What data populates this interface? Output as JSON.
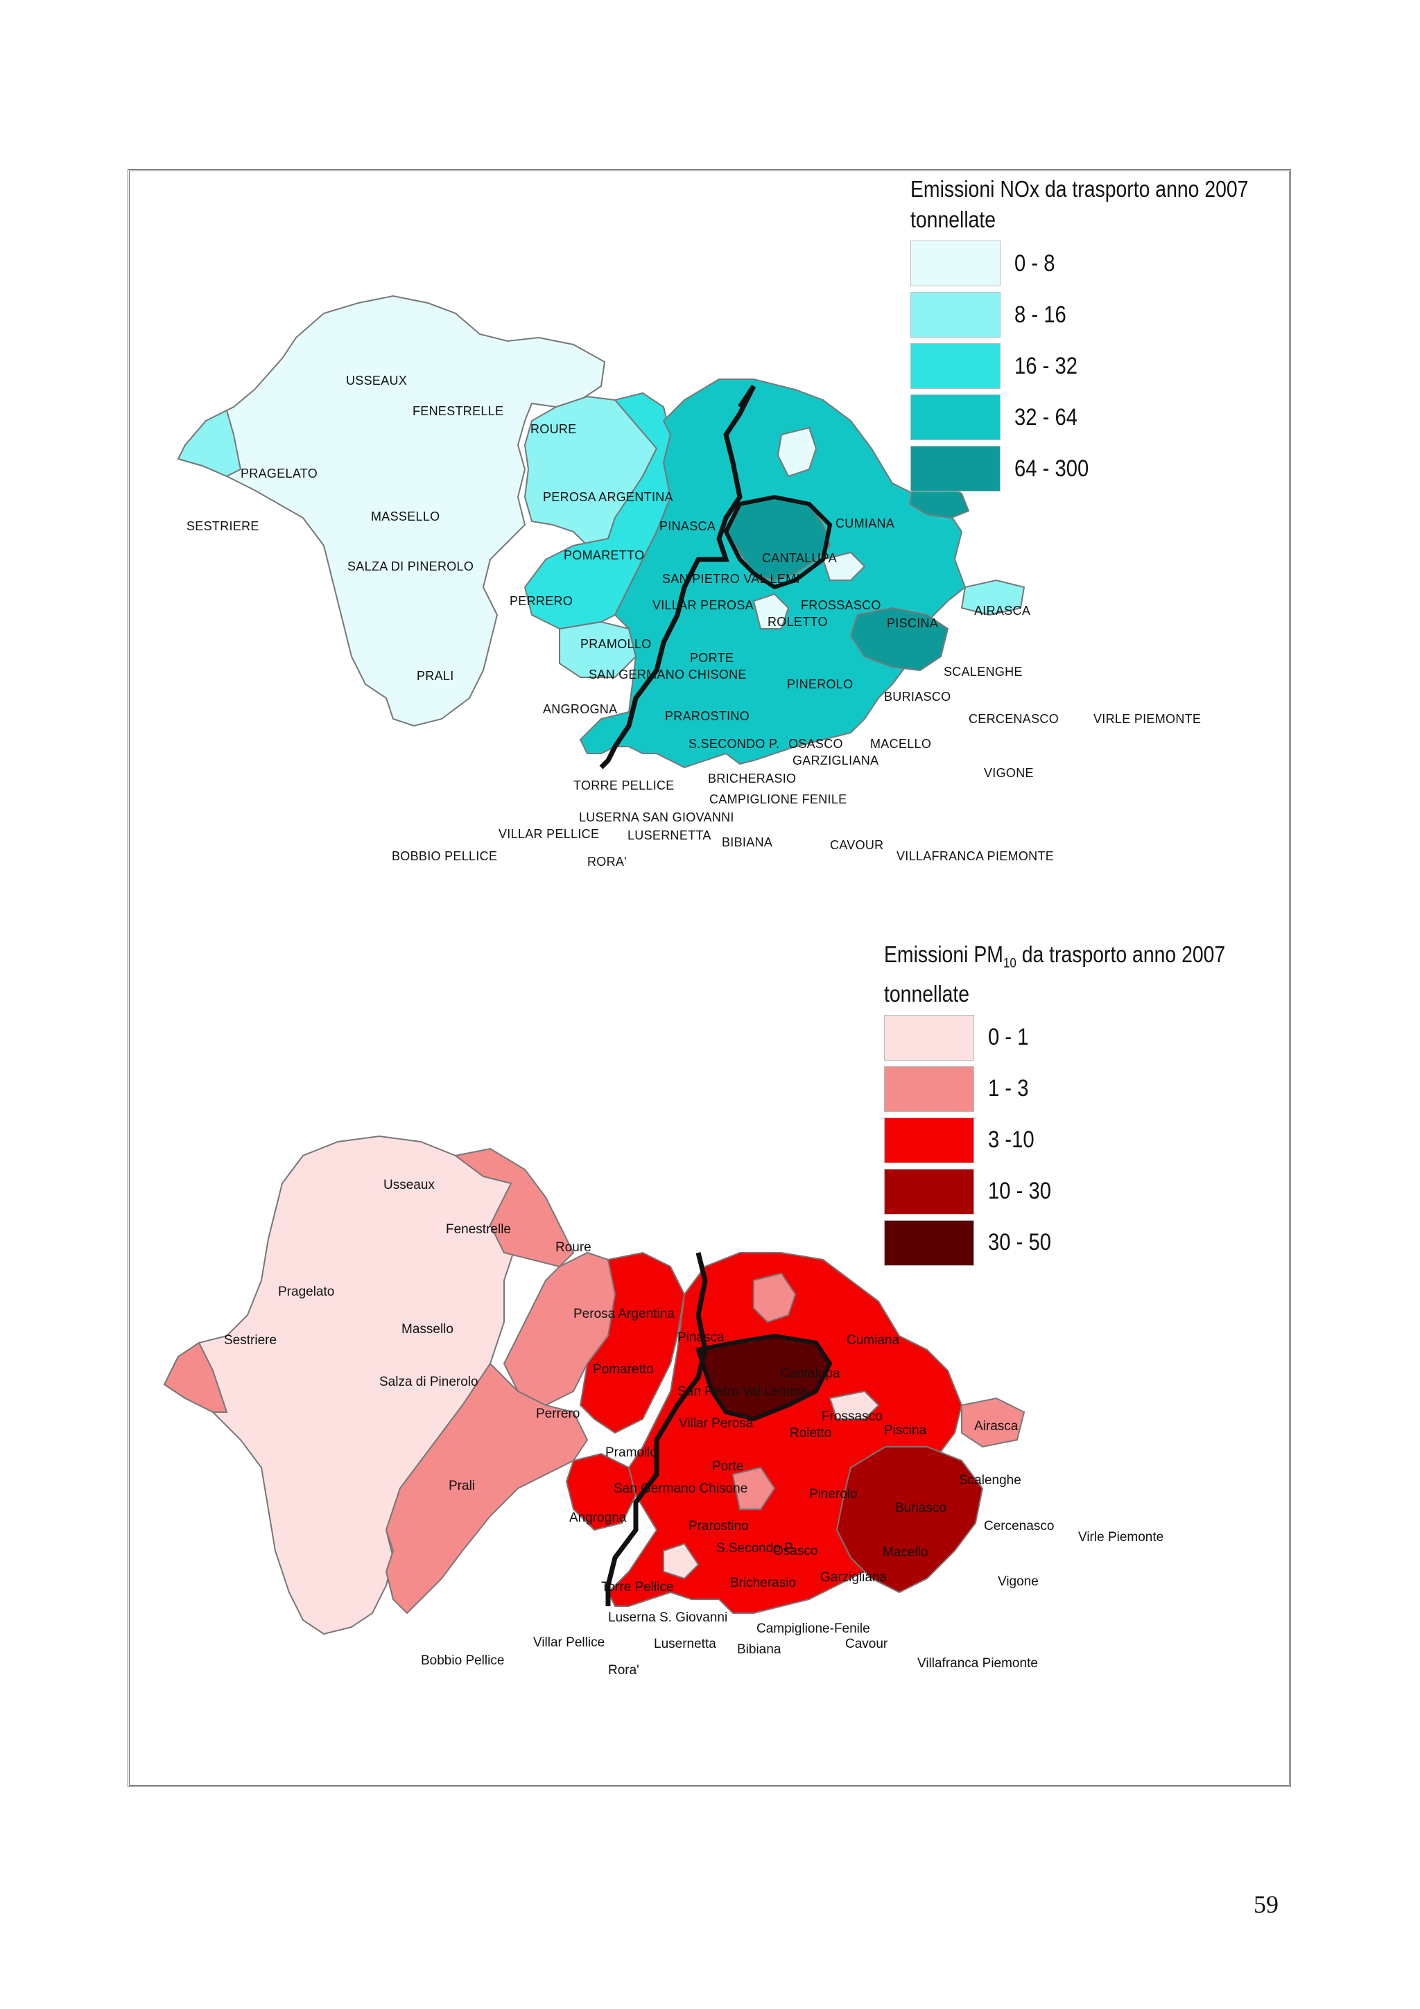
{
  "page_number": "59",
  "nox_map": {
    "legend_title_line1": "Emissioni NOx da trasporto anno 2007",
    "legend_title_line2": "tonnellate",
    "classes": [
      {
        "label": "0 - 8",
        "color": "#e6fbfb"
      },
      {
        "label": "8 - 16",
        "color": "#8df3f3"
      },
      {
        "label": "16 - 32",
        "color": "#2fe3e3"
      },
      {
        "label": "32 - 64",
        "color": "#13c6c6"
      },
      {
        "label": "64 - 300",
        "color": "#0f9a9a"
      }
    ],
    "places": [
      "USSEAUX",
      "FENESTRELLE",
      "ROURE",
      "PRAGELATO",
      "SESTRIERE",
      "MASSELLO",
      "SALZA DI PINEROLO",
      "PERRERO",
      "PRALI",
      "PEROSA ARGENTINA",
      "PINASCA",
      "POMARETTO",
      "SAN PIETRO VAL LEMI",
      "VILLAR PEROSA",
      "PRAMOLLO",
      "PORTE",
      "SAN GERMANO CHISONE",
      "ANGROGNA",
      "PRAROSTINO",
      "S.SECONDO P.",
      "OSASCO",
      "TORRE PELLICE",
      "BRICHERASIO",
      "LUSERNA SAN GIOVANNI",
      "VILLAR PELLICE",
      "LUSERNETTA",
      "BIBIANA",
      "BOBBIO PELLICE",
      "RORA'",
      "CUMIANA",
      "CANTALUPA",
      "FROSSASCO",
      "ROLETTO",
      "PISCINA",
      "AIRASCA",
      "PINEROLO",
      "SCALENGHE",
      "BURIASCO",
      "CERCENASCO",
      "VIRLE PIEMONTE",
      "MACELLO",
      "GARZIGLIANA",
      "VIGONE",
      "CAMPIGLIONE FENILE",
      "CAVOUR",
      "VILLAFRANCA PIEMONTE"
    ]
  },
  "pm_map": {
    "legend_title_prefix": "Emissioni PM",
    "legend_title_sub": "10",
    "legend_title_suffix": " da trasporto anno 2007",
    "legend_title_line2": "tonnellate",
    "classes": [
      {
        "label": "0 - 1",
        "color": "#fde0e0"
      },
      {
        "label": "1 - 3",
        "color": "#f58c8c"
      },
      {
        "label": "3 -10",
        "color": "#f40000"
      },
      {
        "label": "10 - 30",
        "color": "#a80000"
      },
      {
        "label": "30 - 50",
        "color": "#5a0000"
      }
    ],
    "places": [
      "Usseaux",
      "Fenestrelle",
      "Roure",
      "Pragelato",
      "Sestriere",
      "Massello",
      "Salza di Pinerolo",
      "Perrero",
      "Prali",
      "Perosa Argentina",
      "Pinasca",
      "Pomaretto",
      "San Pietro Val Lemina",
      "Villar Perosa",
      "Pramollo",
      "Porte",
      "San Germano Chisone",
      "Angrogna",
      "Prarostino",
      "S.Secondo P.",
      "Osasco",
      "Torre Pellice",
      "Bricherasio",
      "Luserna S. Giovanni",
      "Villar Pellice",
      "Lusernetta",
      "Bibiana",
      "Bobbio Pellice",
      "Rora'",
      "Cumiana",
      "Cantalupa",
      "Frossasco",
      "Roletto",
      "Piscina",
      "Airasca",
      "Pinerolo",
      "Scalenghe",
      "Buriasco",
      "Cercenasco",
      "Virle Piemonte",
      "Macello",
      "Garzigliana",
      "Vigone",
      "Campiglione-Fenile",
      "Cavour",
      "Villafranca Piemonte"
    ]
  }
}
